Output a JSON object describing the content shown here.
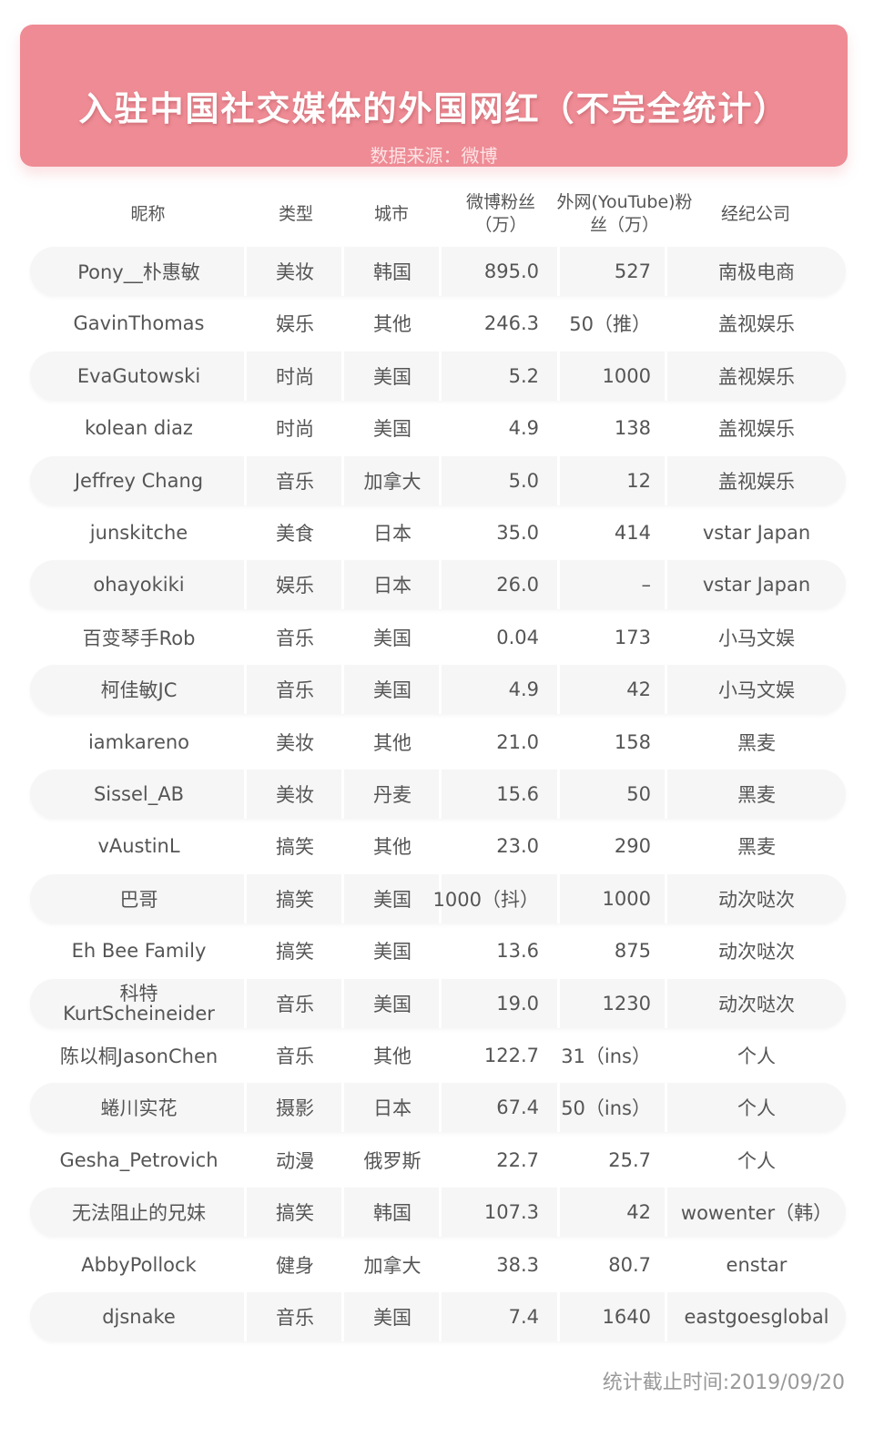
{
  "header": {
    "title": "入驻中国社交媒体的外国网红（不完全统计）",
    "subtitle": "数据来源：微博",
    "banner_color": "#ee8b94"
  },
  "chart_data": {
    "type": "table",
    "columns": [
      "昵称",
      "类型",
      "城市",
      "微博粉丝（万）",
      "外网(YouTube)粉丝（万）",
      "经纪公司"
    ],
    "rows": [
      [
        "Pony__朴惠敏",
        "美妆",
        "韩国",
        "895.0",
        "527",
        "南极电商"
      ],
      [
        "GavinThomas",
        "娱乐",
        "其他",
        "246.3",
        "50（推）",
        "盖视娱乐"
      ],
      [
        "EvaGutowski",
        "时尚",
        "美国",
        "5.2",
        "1000",
        "盖视娱乐"
      ],
      [
        "kolean diaz",
        "时尚",
        "美国",
        "4.9",
        "138",
        "盖视娱乐"
      ],
      [
        "Jeffrey Chang",
        "音乐",
        "加拿大",
        "5.0",
        "12",
        "盖视娱乐"
      ],
      [
        "junskitche",
        "美食",
        "日本",
        "35.0",
        "414",
        "vstar Japan"
      ],
      [
        "ohayokiki",
        "娱乐",
        "日本",
        "26.0",
        "–",
        "vstar Japan"
      ],
      [
        "百变琴手Rob",
        "音乐",
        "美国",
        "0.04",
        "173",
        "小马文娱"
      ],
      [
        "柯佳敏JC",
        "音乐",
        "美国",
        "4.9",
        "42",
        "小马文娱"
      ],
      [
        "iamkareno",
        "美妆",
        "其他",
        "21.0",
        "158",
        "黑麦"
      ],
      [
        "Sissel_AB",
        "美妆",
        "丹麦",
        "15.6",
        "50",
        "黑麦"
      ],
      [
        "vAustinL",
        "搞笑",
        "其他",
        "23.0",
        "290",
        "黑麦"
      ],
      [
        "巴哥",
        "搞笑",
        "美国",
        "1000（抖）",
        "1000",
        "动次哒次"
      ],
      [
        "Eh Bee Family",
        "搞笑",
        "美国",
        "13.6",
        "875",
        "动次哒次"
      ],
      [
        "科特 KurtScheineider",
        "音乐",
        "美国",
        "19.0",
        "1230",
        "动次哒次"
      ],
      [
        "陈以桐JasonChen",
        "音乐",
        "其他",
        "122.7",
        "31（ins）",
        "个人"
      ],
      [
        "蜷川实花",
        "摄影",
        "日本",
        "67.4",
        "50（ins）",
        "个人"
      ],
      [
        "Gesha_Petrovich",
        "动漫",
        "俄罗斯",
        "22.7",
        "25.7",
        "个人"
      ],
      [
        "无法阻止的兄妹",
        "搞笑",
        "韩国",
        "107.3",
        "42",
        "wowenter（韩）"
      ],
      [
        "AbbyPollock",
        "健身",
        "加拿大",
        "38.3",
        "80.7",
        "enstar"
      ],
      [
        "djsnake",
        "音乐",
        "美国",
        "7.4",
        "1640",
        "eastgoesglobal"
      ]
    ]
  },
  "footer": {
    "note": "统计截止时间:2019/09/20"
  }
}
